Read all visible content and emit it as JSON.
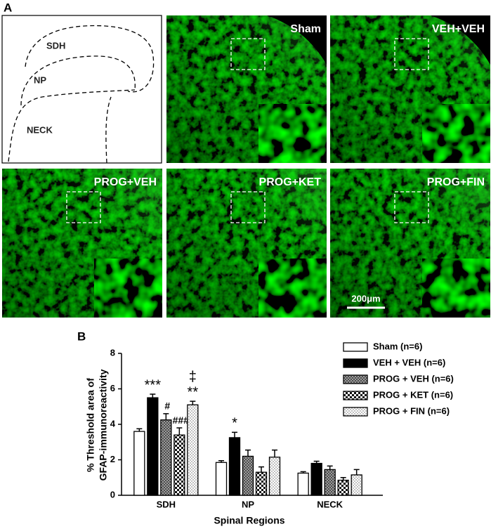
{
  "panel_a": {
    "label": "A",
    "schematic": {
      "regions": [
        "SDH",
        "NP",
        "NECK"
      ]
    },
    "micrographs": [
      "Sham",
      "VEH+VEH",
      "PROG+VEH",
      "PROG+KET",
      "PROG+FIN"
    ],
    "scale_bar": "200μm"
  },
  "chart_data": {
    "type": "bar",
    "label": "B",
    "ylabel": [
      "% Threshold area of",
      "GFAP-immunoreactivity"
    ],
    "xlabel": "Spinal Regions",
    "categories": [
      "SDH",
      "NP",
      "NECK"
    ],
    "ylim": [
      0,
      8
    ],
    "yticks": [
      0,
      2,
      4,
      6,
      8
    ],
    "legend": "top-right",
    "series": [
      {
        "name": "Sham (n=6)",
        "fill": "white",
        "values": [
          3.6,
          1.85,
          1.25
        ],
        "errors": [
          0.15,
          0.1,
          0.08
        ],
        "significance": [
          null,
          null,
          null
        ]
      },
      {
        "name": "VEH + VEH (n=6)",
        "fill": "black",
        "values": [
          5.5,
          3.25,
          1.8
        ],
        "errors": [
          0.2,
          0.3,
          0.12
        ],
        "significance": [
          [
            "***"
          ],
          [
            "*"
          ],
          null
        ]
      },
      {
        "name": "PROG + VEH (n=6)",
        "fill": "crosshatch",
        "values": [
          4.25,
          2.2,
          1.45
        ],
        "errors": [
          0.35,
          0.35,
          0.2
        ],
        "significance": [
          [
            "#"
          ],
          null,
          null
        ]
      },
      {
        "name": "PROG + KET (n=6)",
        "fill": "checker",
        "values": [
          3.4,
          1.3,
          0.85
        ],
        "errors": [
          0.4,
          0.3,
          0.15
        ],
        "significance": [
          [
            "###"
          ],
          null,
          null
        ]
      },
      {
        "name": "PROG + FIN (n=6)",
        "fill": "dots",
        "values": [
          5.1,
          2.15,
          1.15
        ],
        "errors": [
          0.2,
          0.4,
          0.3
        ],
        "significance": [
          [
            "‡",
            "**"
          ],
          null,
          null
        ]
      }
    ]
  }
}
